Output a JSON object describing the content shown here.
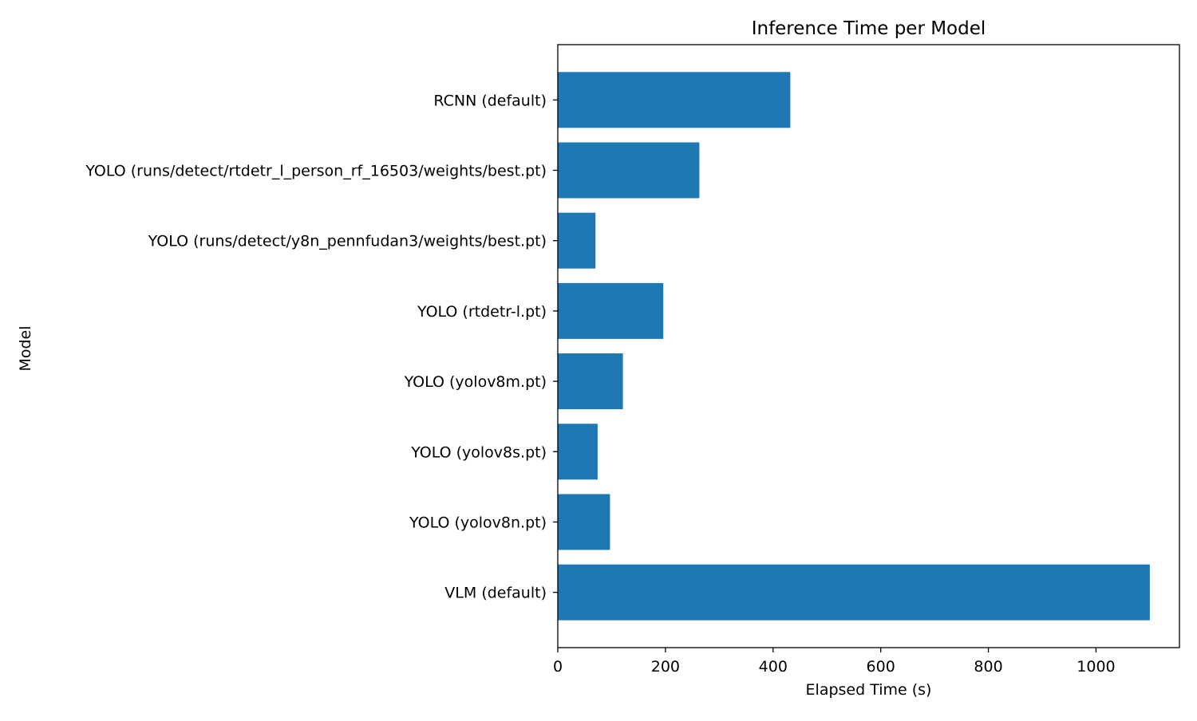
{
  "chart_data": {
    "type": "bar",
    "orientation": "horizontal",
    "title": "Inference Time per Model",
    "xlabel": "Elapsed Time (s)",
    "ylabel": "Model",
    "categories": [
      "RCNN (default)",
      "YOLO (runs/detect/rtdetr_l_person_rf_16503/weights/best.pt)",
      "YOLO (runs/detect/y8n_pennfudan3/weights/best.pt)",
      "YOLO (rtdetr-l.pt)",
      "YOLO (yolov8m.pt)",
      "YOLO (yolov8s.pt)",
      "YOLO (yolov8n.pt)",
      "VLM (default)"
    ],
    "values": [
      432,
      263,
      70,
      196,
      121,
      74,
      97,
      1100
    ],
    "xlim": [
      0,
      1155
    ],
    "xticks": [
      0,
      200,
      400,
      600,
      800,
      1000
    ],
    "grid": false,
    "legend": "none",
    "bar_color": "#1f77b4"
  }
}
